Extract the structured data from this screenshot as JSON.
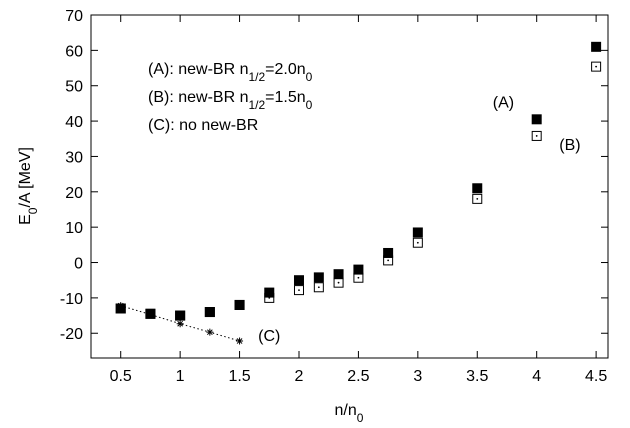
{
  "chart_data": {
    "type": "scatter",
    "xlabel": "n/n",
    "xlabel_sub": "0",
    "ylabel": "E",
    "ylabel_sub": "0",
    "ylabel_rest": "/A  [MeV]",
    "xlim": [
      0.25,
      4.6
    ],
    "ylim": [
      -27,
      70
    ],
    "x_ticks": [
      0.5,
      1,
      1.5,
      2,
      2.5,
      3,
      3.5,
      4,
      4.5
    ],
    "x_tick_labels": [
      "0.5",
      "1",
      "1.5",
      "2",
      "2.5",
      "3",
      "3.5",
      "4",
      "4.5"
    ],
    "y_ticks": [
      -20,
      -10,
      0,
      10,
      20,
      30,
      40,
      50,
      60,
      70
    ],
    "y_tick_labels": [
      "-20",
      "-10",
      "0",
      "10",
      "20",
      "30",
      "40",
      "50",
      "60",
      "70"
    ],
    "grid": false,
    "legend_lines": [
      {
        "pre": "(A): new-BR n",
        "sub": "1/2",
        "mid": "=2.0n",
        "sub2": "0"
      },
      {
        "pre": "(B): new-BR n",
        "sub": "1/2",
        "mid": "=1.5n",
        "sub2": "0"
      },
      {
        "pre": "(C): no new-BR",
        "sub": "",
        "mid": "",
        "sub2": ""
      }
    ],
    "series": [
      {
        "label": "(A)",
        "marker": "filled-square",
        "color": "#000000",
        "x": [
          0.5,
          0.75,
          1.0,
          1.25,
          1.5,
          1.75,
          2.0,
          2.167,
          2.333,
          2.5,
          2.75,
          3.0,
          3.5,
          4.0,
          4.5
        ],
        "y": [
          -13.0,
          -14.5,
          -15.0,
          -14.0,
          -12.0,
          -8.5,
          -5.0,
          -4.2,
          -3.3,
          -2.0,
          2.7,
          8.5,
          21.0,
          40.5,
          61.0
        ]
      },
      {
        "label": "(B)",
        "marker": "open-square-dot",
        "color": "#000000",
        "x": [
          0.5,
          0.75,
          1.0,
          1.25,
          1.5,
          1.75,
          2.0,
          2.167,
          2.333,
          2.5,
          2.75,
          3.0,
          3.5,
          4.0,
          4.5
        ],
        "y": [
          -13.0,
          -14.5,
          -15.0,
          -14.0,
          -12.0,
          -10.0,
          -7.8,
          -7.0,
          -5.7,
          -4.3,
          0.6,
          5.6,
          18.0,
          35.8,
          55.4
        ]
      },
      {
        "label": "(C)",
        "marker": "star",
        "line": "dotted",
        "color": "#000000",
        "x": [
          0.5,
          0.75,
          1.0,
          1.25,
          1.5
        ],
        "y": [
          -12.2,
          -14.7,
          -17.3,
          -19.7,
          -22.2
        ]
      }
    ],
    "annotations": [
      {
        "text": "(A)",
        "x": 3.72,
        "y": 45.5
      },
      {
        "text": "(B)",
        "x": 4.28,
        "y": 33.5
      },
      {
        "text": "(C)",
        "x": 1.75,
        "y": -20.5
      }
    ]
  }
}
